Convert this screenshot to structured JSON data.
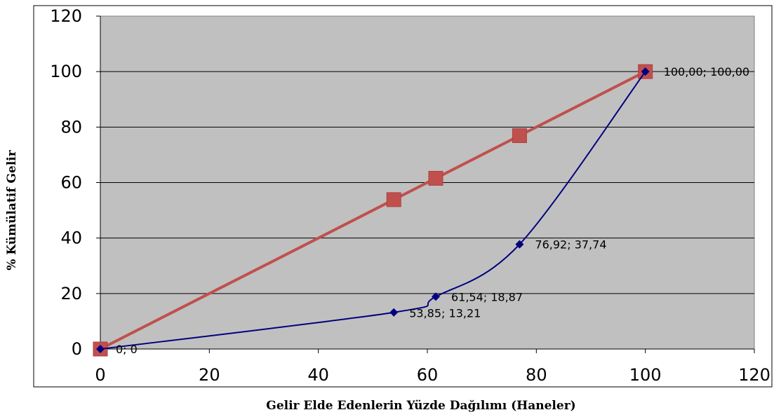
{
  "chart_data": {
    "type": "scatter",
    "title": "",
    "xlabel": "Gelir Elde Edenlerin Yüzde Dağılımı (Haneler)",
    "ylabel": "% Kümülatif Gelir",
    "xlim": [
      0,
      120
    ],
    "ylim": [
      0,
      120
    ],
    "xticks": [
      0,
      20,
      40,
      60,
      80,
      100,
      120
    ],
    "yticks": [
      0,
      20,
      40,
      60,
      80,
      100,
      120
    ],
    "grid": "horizontal",
    "plot_background": "#c0c0c0",
    "series": [
      {
        "color": "#c0504d",
        "marker": "square",
        "line": "straight",
        "x": [
          0,
          53.85,
          61.54,
          76.92,
          100
        ],
        "y": [
          0,
          53.85,
          61.54,
          76.92,
          100
        ]
      },
      {
        "color": "#000080",
        "marker": "diamond",
        "line": "smooth",
        "x": [
          0,
          53.85,
          61.54,
          76.92,
          100
        ],
        "y": [
          0,
          13.21,
          18.87,
          37.74,
          100
        ],
        "labels": [
          "0; 0",
          "53,85; 13,21",
          "61,54; 18,87",
          "76,92; 37,74",
          "100,00; 100,00"
        ]
      }
    ]
  }
}
